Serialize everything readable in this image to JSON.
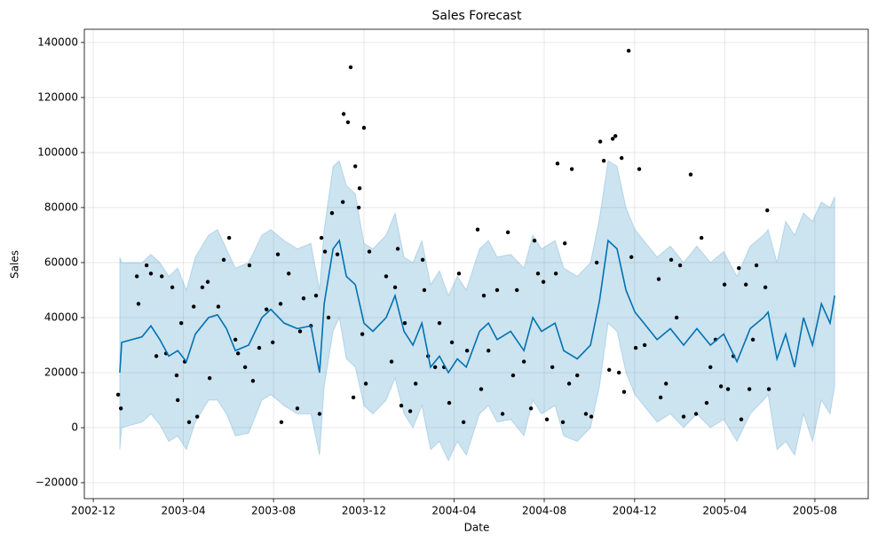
{
  "chart_data": {
    "type": "line",
    "title": "Sales Forecast",
    "xlabel": "Date",
    "ylabel": "Sales",
    "xlim": [
      2002.884,
      2005.78
    ],
    "ylim": [
      -25800,
      144800
    ],
    "xticks": [
      {
        "value": 2002.917,
        "label": "2002-12"
      },
      {
        "value": 2003.25,
        "label": "2003-04"
      },
      {
        "value": 2003.583,
        "label": "2003-08"
      },
      {
        "value": 2003.917,
        "label": "2003-12"
      },
      {
        "value": 2004.25,
        "label": "2004-04"
      },
      {
        "value": 2004.583,
        "label": "2004-08"
      },
      {
        "value": 2004.917,
        "label": "2004-12"
      },
      {
        "value": 2005.25,
        "label": "2005-04"
      },
      {
        "value": 2005.583,
        "label": "2005-08"
      }
    ],
    "yticks": [
      {
        "value": -20000,
        "label": "−20000"
      },
      0,
      20000,
      40000,
      60000,
      80000,
      100000,
      120000,
      140000
    ],
    "grid": true,
    "forecast": {
      "color": "#0072b2",
      "band_color": "#0072b2",
      "x": [
        2003.015,
        2003.022,
        2003.097,
        2003.13,
        2003.163,
        2003.196,
        2003.229,
        2003.261,
        2003.294,
        2003.343,
        2003.376,
        2003.409,
        2003.442,
        2003.491,
        2003.54,
        2003.573,
        2003.622,
        2003.671,
        2003.721,
        2003.753,
        2003.77,
        2003.803,
        2003.826,
        2003.852,
        2003.885,
        2003.917,
        2003.95,
        2003.999,
        2004.032,
        2004.065,
        2004.098,
        2004.131,
        2004.163,
        2004.196,
        2004.229,
        2004.262,
        2004.295,
        2004.344,
        2004.377,
        2004.409,
        2004.459,
        2004.508,
        2004.541,
        2004.573,
        2004.623,
        2004.655,
        2004.705,
        2004.754,
        2004.787,
        2004.819,
        2004.852,
        2004.885,
        2004.918,
        2004.951,
        2005.0,
        2005.049,
        2005.098,
        2005.147,
        2005.197,
        2005.246,
        2005.295,
        2005.344,
        2005.393,
        2005.41,
        2005.443,
        2005.475,
        2005.508,
        2005.541,
        2005.574,
        2005.607,
        2005.639,
        2005.656
      ],
      "values": [
        20000,
        31000,
        33000,
        37000,
        32000,
        26000,
        28000,
        24000,
        34000,
        40000,
        41000,
        36000,
        28000,
        30000,
        40000,
        43000,
        38000,
        36000,
        37000,
        20000,
        45000,
        65000,
        68000,
        55000,
        52000,
        38000,
        35000,
        40000,
        48000,
        35000,
        30000,
        38000,
        22000,
        26000,
        20000,
        25000,
        22000,
        35000,
        38000,
        32000,
        35000,
        28000,
        40000,
        35000,
        38000,
        28000,
        25000,
        30000,
        46000,
        68000,
        65000,
        50000,
        42000,
        38000,
        32000,
        36000,
        30000,
        36000,
        30000,
        34000,
        24000,
        36000,
        40000,
        42000,
        25000,
        34000,
        22000,
        40000,
        30000,
        45000,
        38000,
        48000
      ],
      "lower": [
        -8000,
        0,
        2000,
        5000,
        1000,
        -5000,
        -3000,
        -8000,
        2000,
        10000,
        10000,
        5000,
        -3000,
        -2000,
        10000,
        12000,
        8000,
        5000,
        5000,
        -10000,
        15000,
        35000,
        40000,
        25000,
        22000,
        8000,
        5000,
        10000,
        18000,
        5000,
        0,
        8000,
        -8000,
        -5000,
        -12000,
        -5000,
        -10000,
        5000,
        8000,
        2000,
        3000,
        -3000,
        10000,
        5000,
        8000,
        -3000,
        -5000,
        0,
        15000,
        38000,
        35000,
        20000,
        12000,
        8000,
        2000,
        5000,
        0,
        5000,
        0,
        3000,
        -5000,
        5000,
        10000,
        12000,
        -8000,
        -5000,
        -10000,
        5000,
        -5000,
        10000,
        5000,
        15000
      ],
      "upper": [
        62000,
        60000,
        60000,
        63000,
        60000,
        55000,
        58000,
        50000,
        62000,
        70000,
        72000,
        65000,
        58000,
        60000,
        70000,
        72000,
        68000,
        65000,
        67000,
        50000,
        72000,
        95000,
        97000,
        88000,
        85000,
        67000,
        65000,
        70000,
        78000,
        62000,
        60000,
        68000,
        52000,
        57000,
        48000,
        55000,
        50000,
        65000,
        68000,
        62000,
        63000,
        58000,
        70000,
        65000,
        68000,
        58000,
        55000,
        60000,
        76000,
        97000,
        95000,
        80000,
        72000,
        68000,
        62000,
        66000,
        60000,
        66000,
        60000,
        64000,
        55000,
        66000,
        70000,
        72000,
        60000,
        75000,
        70000,
        78000,
        75000,
        82000,
        80000,
        84000
      ]
    },
    "actual": {
      "color": "#000000",
      "x": [
        2003.009,
        2003.019,
        2003.078,
        2003.084,
        2003.114,
        2003.13,
        2003.15,
        2003.17,
        2003.186,
        2003.209,
        2003.225,
        2003.229,
        2003.242,
        2003.255,
        2003.271,
        2003.288,
        2003.301,
        2003.32,
        2003.34,
        2003.347,
        2003.379,
        2003.399,
        2003.419,
        2003.442,
        2003.452,
        2003.478,
        2003.494,
        2003.507,
        2003.53,
        2003.557,
        2003.58,
        2003.599,
        2003.609,
        2003.612,
        2003.639,
        2003.671,
        2003.681,
        2003.694,
        2003.721,
        2003.74,
        2003.753,
        2003.76,
        2003.773,
        2003.786,
        2003.799,
        2003.819,
        2003.839,
        2003.842,
        2003.858,
        2003.868,
        2003.878,
        2003.885,
        2003.898,
        2003.901,
        2003.911,
        2003.917,
        2003.924,
        2003.937,
        2003.999,
        2004.019,
        2004.032,
        2004.042,
        2004.055,
        2004.068,
        2004.088,
        2004.108,
        2004.134,
        2004.14,
        2004.154,
        2004.18,
        2004.196,
        2004.213,
        2004.232,
        2004.242,
        2004.268,
        2004.285,
        2004.298,
        2004.337,
        2004.35,
        2004.36,
        2004.377,
        2004.409,
        2004.429,
        2004.449,
        2004.468,
        2004.482,
        2004.508,
        2004.534,
        2004.547,
        2004.56,
        2004.58,
        2004.593,
        2004.613,
        2004.626,
        2004.632,
        2004.652,
        2004.659,
        2004.675,
        2004.685,
        2004.705,
        2004.737,
        2004.757,
        2004.777,
        2004.79,
        2004.803,
        2004.823,
        2004.836,
        2004.846,
        2004.859,
        2004.869,
        2004.878,
        2004.895,
        2004.905,
        2004.921,
        2004.934,
        2004.954,
        2005.006,
        2005.013,
        2005.033,
        2005.052,
        2005.072,
        2005.085,
        2005.098,
        2005.124,
        2005.144,
        2005.164,
        2005.183,
        2005.197,
        2005.216,
        2005.236,
        2005.249,
        2005.262,
        2005.282,
        2005.302,
        2005.311,
        2005.328,
        2005.341,
        2005.354,
        2005.367,
        2005.4,
        2005.407,
        2005.413
      ],
      "values": [
        12000,
        7000,
        55000,
        45000,
        59000,
        56000,
        26000,
        55000,
        27000,
        51000,
        19000,
        10000,
        38000,
        24000,
        2000,
        44000,
        4000,
        51000,
        53000,
        18000,
        44000,
        61000,
        69000,
        32000,
        27000,
        22000,
        59000,
        17000,
        29000,
        43000,
        31000,
        63000,
        45000,
        2000,
        56000,
        7000,
        35000,
        47000,
        37000,
        48000,
        5000,
        69000,
        64000,
        40000,
        78000,
        63000,
        82000,
        114000,
        111000,
        131000,
        11000,
        95000,
        80000,
        87000,
        34000,
        109000,
        16000,
        64000,
        55000,
        24000,
        51000,
        65000,
        8000,
        38000,
        6000,
        16000,
        61000,
        50000,
        26000,
        22000,
        38000,
        22000,
        9000,
        31000,
        56000,
        2000,
        28000,
        72000,
        14000,
        48000,
        28000,
        50000,
        5000,
        71000,
        19000,
        50000,
        24000,
        7000,
        68000,
        56000,
        53000,
        3000,
        22000,
        56000,
        96000,
        2000,
        67000,
        16000,
        94000,
        19000,
        5000,
        4000,
        60000,
        104000,
        97000,
        21000,
        105000,
        106000,
        20000,
        98000,
        13000,
        137000,
        62000,
        29000,
        94000,
        30000,
        54000,
        11000,
        16000,
        61000,
        40000,
        59000,
        4000,
        92000,
        5000,
        69000,
        9000,
        22000,
        32000,
        15000,
        52000,
        14000,
        26000,
        58000,
        3000,
        52000,
        14000,
        32000,
        59000,
        51000,
        79000,
        14000
      ]
    }
  }
}
